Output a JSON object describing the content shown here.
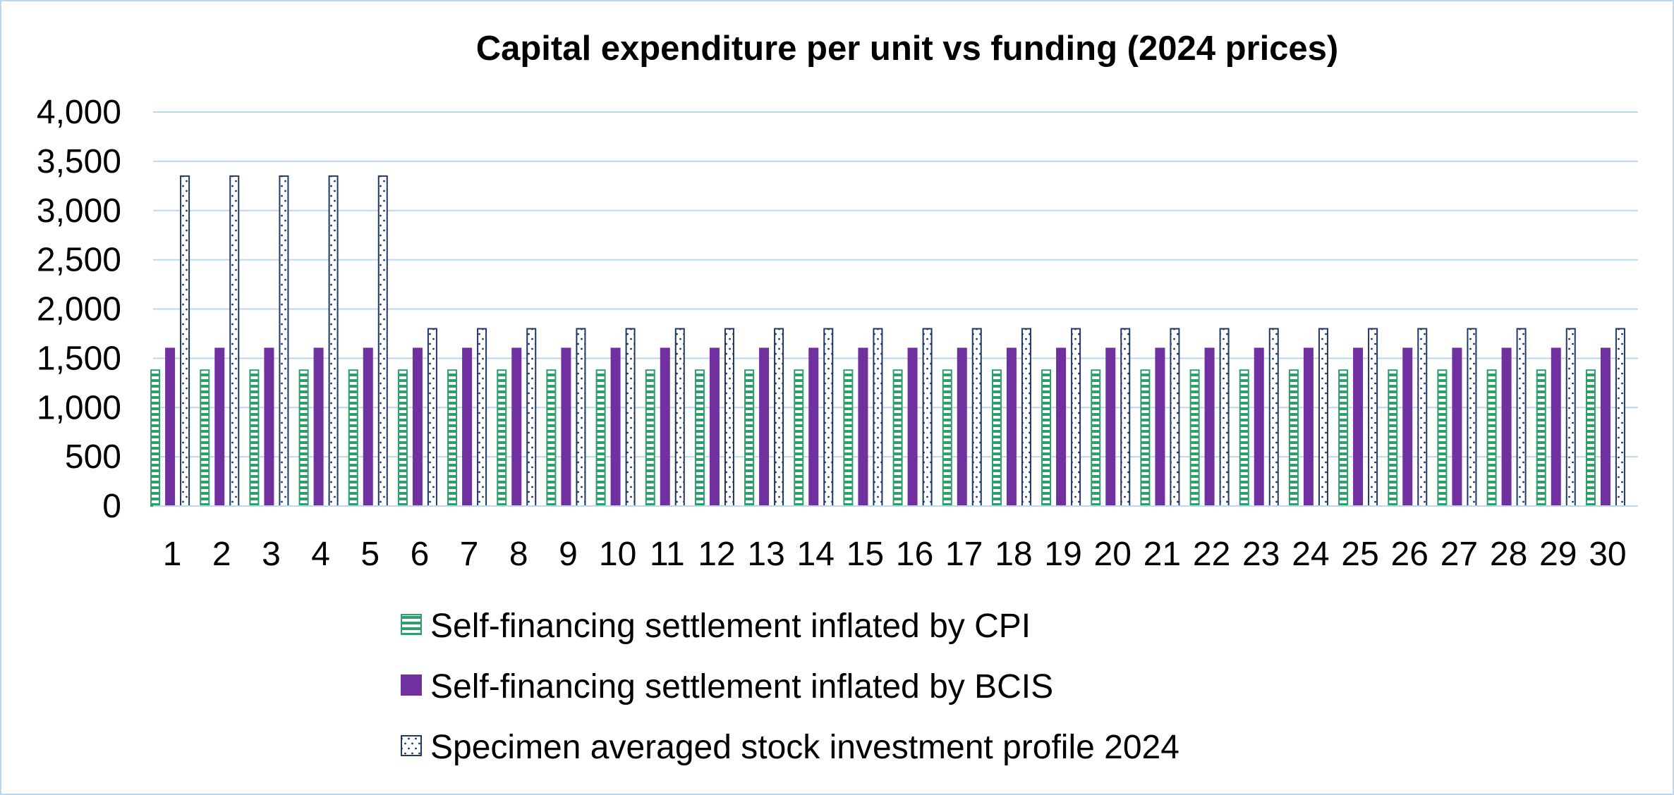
{
  "chart_data": {
    "type": "bar",
    "title": "Capital expenditure per unit vs funding (2024 prices)",
    "xlabel": "",
    "ylabel": "",
    "ylim": [
      0,
      4000
    ],
    "yticks": [
      "0",
      "500",
      "1,000",
      "1,500",
      "2,000",
      "2,500",
      "3,000",
      "3,500",
      "4,000"
    ],
    "ytick_values": [
      0,
      500,
      1000,
      1500,
      2000,
      2500,
      3000,
      3500,
      4000
    ],
    "grid": true,
    "legend_position": "bottom",
    "categories": [
      "1",
      "2",
      "3",
      "4",
      "5",
      "6",
      "7",
      "8",
      "9",
      "10",
      "11",
      "12",
      "13",
      "14",
      "15",
      "16",
      "17",
      "18",
      "19",
      "20",
      "21",
      "22",
      "23",
      "24",
      "25",
      "26",
      "27",
      "28",
      "29",
      "30"
    ],
    "series": [
      {
        "name": "Self-financing settlement inflated by CPI",
        "color": "#2e9e6b",
        "pattern": "horizontal-stripes",
        "values": [
          1380,
          1380,
          1380,
          1380,
          1380,
          1380,
          1380,
          1380,
          1380,
          1380,
          1380,
          1380,
          1380,
          1380,
          1380,
          1380,
          1380,
          1380,
          1380,
          1380,
          1380,
          1380,
          1380,
          1380,
          1380,
          1380,
          1380,
          1380,
          1380,
          1380
        ]
      },
      {
        "name": "Self-financing settlement inflated by BCIS",
        "color": "#7030a0",
        "pattern": "solid",
        "values": [
          1600,
          1600,
          1600,
          1600,
          1600,
          1600,
          1600,
          1600,
          1600,
          1600,
          1600,
          1600,
          1600,
          1600,
          1600,
          1600,
          1600,
          1600,
          1600,
          1600,
          1600,
          1600,
          1600,
          1600,
          1600,
          1600,
          1600,
          1600,
          1600,
          1600
        ]
      },
      {
        "name": "Specimen averaged stock investment profile 2024",
        "color": "#203864",
        "pattern": "dots",
        "values": [
          3350,
          3350,
          3350,
          3350,
          3350,
          1800,
          1800,
          1800,
          1800,
          1800,
          1800,
          1800,
          1800,
          1800,
          1800,
          1800,
          1800,
          1800,
          1800,
          1800,
          1800,
          1800,
          1800,
          1800,
          1800,
          1800,
          1800,
          1800,
          1800,
          1800
        ]
      }
    ]
  }
}
